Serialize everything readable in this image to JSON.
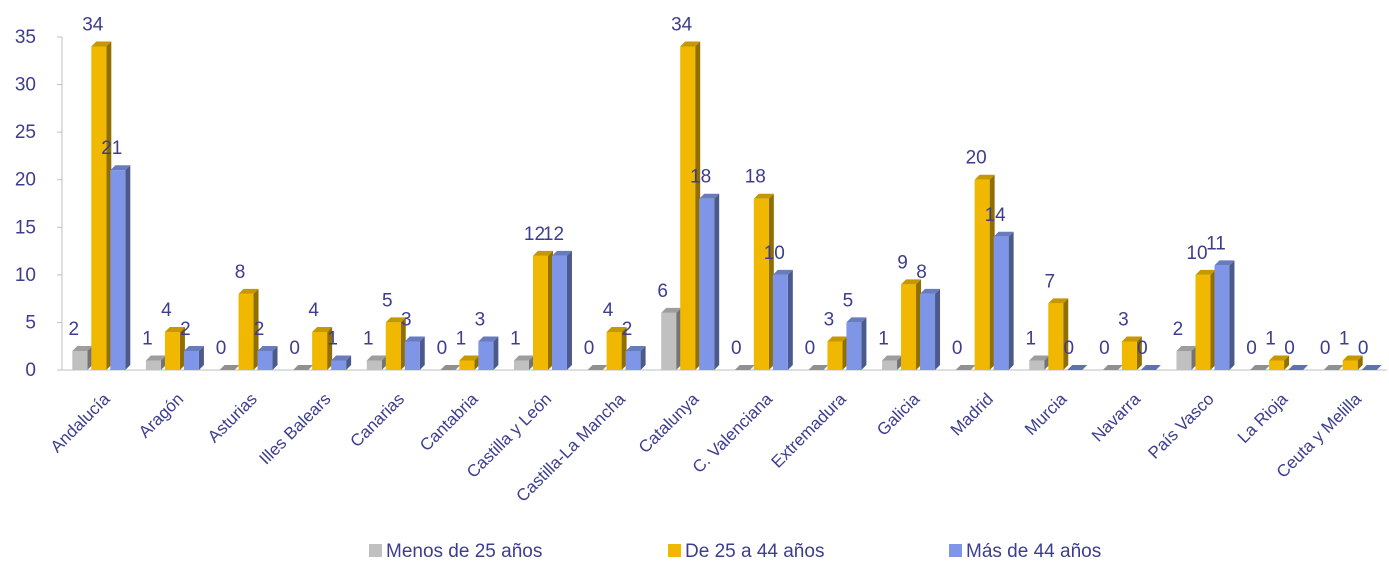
{
  "chart_data": {
    "type": "bar",
    "title": "",
    "xlabel": "",
    "ylabel": "",
    "ylim": [
      0,
      35
    ],
    "yticks": [
      0,
      5,
      10,
      15,
      20,
      25,
      30,
      35
    ],
    "grid": false,
    "legend_position": "bottom",
    "categories": [
      "Andalucía",
      "Aragón",
      "Asturias",
      "Illes Balears",
      "Canarias",
      "Cantabria",
      "Castilla y León",
      "Castilla-La Mancha",
      "Catalunya",
      "C. Valenciana",
      "Extremadura",
      "Galicia",
      "Madrid",
      "Murcia",
      "Navarra",
      "País Vasco",
      "La Rioja",
      "Ceuta y Melilla"
    ],
    "series": [
      {
        "name": "Menos de 25 años",
        "color": "#c0c0c0",
        "values": [
          2,
          1,
          0,
          0,
          1,
          0,
          1,
          0,
          6,
          0,
          0,
          1,
          0,
          1,
          0,
          2,
          0,
          0
        ]
      },
      {
        "name": "De 25 a 44 años",
        "color": "#f0b800",
        "values": [
          34,
          4,
          8,
          4,
          5,
          1,
          12,
          4,
          34,
          18,
          3,
          9,
          20,
          7,
          3,
          10,
          1,
          1
        ]
      },
      {
        "name": "Más de 44 años",
        "color": "#7f96e8",
        "values": [
          21,
          2,
          2,
          1,
          3,
          3,
          12,
          2,
          18,
          10,
          5,
          8,
          14,
          0,
          0,
          11,
          0,
          0
        ]
      }
    ]
  }
}
